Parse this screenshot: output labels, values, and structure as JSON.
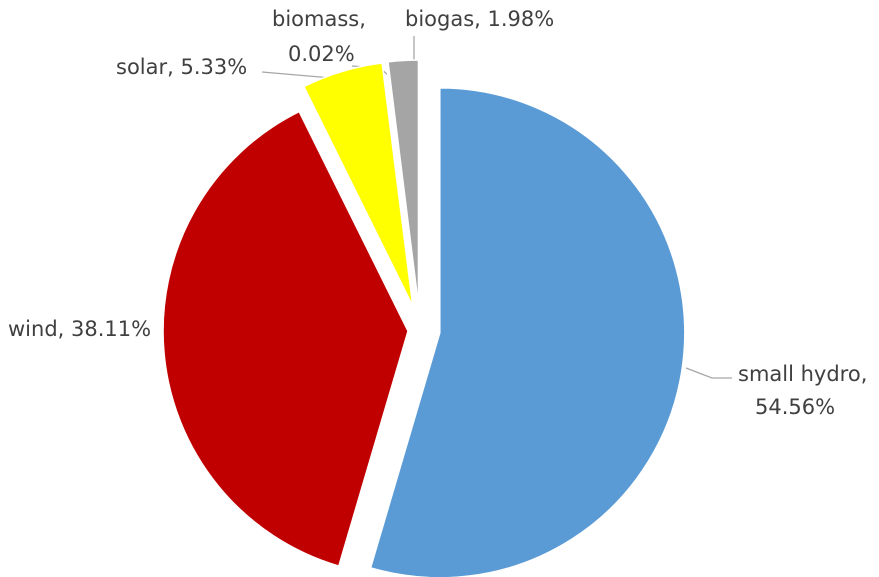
{
  "chart_data": {
    "type": "pie",
    "categories": [
      "small hydro",
      "wind",
      "solar",
      "biomass",
      "biogas"
    ],
    "values": [
      54.56,
      38.11,
      5.33,
      0.02,
      1.98
    ],
    "labels": [
      [
        "small hydro,",
        "54.56%"
      ],
      [
        "wind, 38.11%"
      ],
      [
        "solar, 5.33%"
      ],
      [
        "biomass,",
        "0.02%"
      ],
      [
        "biogas, 1.98%"
      ]
    ],
    "colors": [
      "#5b9bd5",
      "#c00000",
      "#ffff00",
      "#a5a5a5",
      "#a5a5a5"
    ]
  }
}
